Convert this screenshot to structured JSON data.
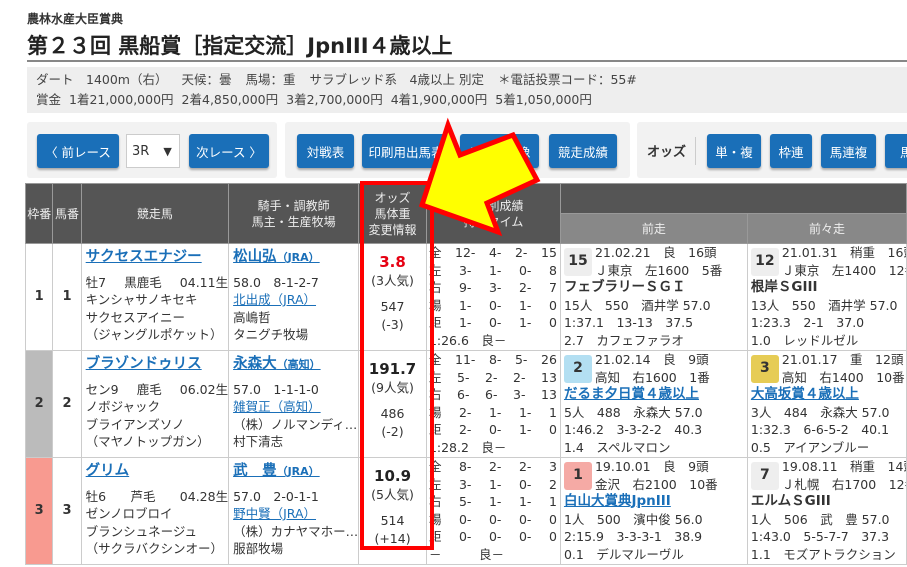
{
  "race": {
    "subtitle": "農林水産大臣賞典",
    "title": "第２３回 黒船賞［指定交流］JpnIII４歳以上",
    "info1": [
      "ダート　1400m（右）",
      "天候：曇",
      "馬場：重",
      "サラブレッド系　4歳以上 別定",
      "＊電話投票コード：55#"
    ],
    "info2": [
      "賞金",
      "1着21,000,000円",
      "2着4,850,000円",
      "3着2,700,000円",
      "4着1,900,000円",
      "5着1,050,000円"
    ]
  },
  "nav": {
    "prev": "〈 前レース",
    "race_select": "3R",
    "next": "次レース 〉",
    "buttons": [
      "対戦表",
      "印刷用出馬表",
      "レース映像",
      "競走成績"
    ],
    "odds_label": "オッズ",
    "odds_buttons": [
      "単・複",
      "枠連",
      "馬連複",
      "馬単"
    ]
  },
  "table": {
    "headers": {
      "waku": "枠番",
      "uma": "馬番",
      "horse": "競走馬",
      "jockey1": "騎手・調教師",
      "jockey2": "馬主・生産牧場",
      "odds1": "オッズ",
      "odds2": "馬体重",
      "odds3": "変更情報",
      "rec1": "条件別成績",
      "rec2": "持ちタイム",
      "prev1": "前走",
      "prev2": "前々走"
    },
    "rows": [
      {
        "waku": "1",
        "uma": "1",
        "waku_color": "#ffffff",
        "horse": "サクセスエナジー",
        "sex_age": "牡7",
        "color": "黒鹿毛",
        "birth": "04.11生",
        "sire": "キンシャサノキセキ",
        "dam": "サクセスアイニー",
        "damsire": "（ジャングルポケット）",
        "jockey": "松山弘",
        "jockey_aff": "（JRA）",
        "weight_rec": "58.0　8-1-2-7",
        "trainer": "北出成（JRA）",
        "owner": "高嶋哲",
        "breeder": "タニグチ牧場",
        "odds": "3.8",
        "odds_color": "#e60012",
        "pop": "(3人気)",
        "bw": "547",
        "bwd": "(-3)",
        "rec": [
          [
            "全",
            "12-",
            "4-",
            "2-",
            "15"
          ],
          [
            "左",
            "3-",
            "1-",
            "0-",
            "8"
          ],
          [
            "右",
            "9-",
            "3-",
            "2-",
            "7"
          ],
          [
            "場",
            "1-",
            "0-",
            "1-",
            "0"
          ],
          [
            "距",
            "1-",
            "0-",
            "1-",
            "0"
          ]
        ],
        "best": "1:26.6　良－",
        "p1": {
          "no": "15",
          "bg": "#eeeeee",
          "l1": "21.02.21　良　16頭",
          "l2": "Ｊ東京　左1600　5番",
          "race": "フェブラリーＳＧＩ",
          "link": false,
          "l3": "15人　550　酒井学 57.0",
          "l4": "1:37.1　13-13　37.5",
          "l5": "2.7　カフェファラオ"
        },
        "p2": {
          "no": "12",
          "bg": "#eeeeee",
          "l1": "21.01.31　稍重　16頭",
          "l2": "Ｊ東京　左1400　12番",
          "race": "根岸ＳGIII",
          "link": false,
          "l3": "13人　550　酒井学 57.0",
          "l4": "1:23.3　2-1　37.0",
          "l5": "1.0　レッドルゼル"
        }
      },
      {
        "waku": "2",
        "uma": "2",
        "waku_color": "#bbbbbb",
        "horse": "ブラゾンドゥリス",
        "sex_age": "セン9",
        "color": "鹿毛",
        "birth": "06.02生",
        "sire": "ノボジャック",
        "dam": "ブライアンズソノ",
        "damsire": "（マヤノトップガン）",
        "jockey": "永森大",
        "jockey_aff": "（高知）",
        "weight_rec": "57.0　1-1-1-0",
        "trainer": "雑賀正（高知）",
        "owner": "（株）ノルマンディ…",
        "breeder": "村下清志",
        "odds": "191.7",
        "odds_color": "#222222",
        "pop": "(9人気)",
        "bw": "486",
        "bwd": "(-2)",
        "rec": [
          [
            "全",
            "11-",
            "8-",
            "5-",
            "26"
          ],
          [
            "左",
            "5-",
            "2-",
            "2-",
            "13"
          ],
          [
            "右",
            "6-",
            "6-",
            "3-",
            "13"
          ],
          [
            "場",
            "2-",
            "1-",
            "1-",
            "1"
          ],
          [
            "距",
            "2-",
            "0-",
            "1-",
            "0"
          ]
        ],
        "best": "1:28.2　良－",
        "p1": {
          "no": "2",
          "bg": "#b3dff2",
          "l1": "21.02.14　良　9頭",
          "l2": "高知　右1600　1番",
          "race": "だるま夕日賞４歳以上",
          "link": true,
          "l3": "5人　488　永森大 57.0",
          "l4": "1:46.2　3-3-2-2　40.3",
          "l5": "1.4　スペルマロン"
        },
        "p2": {
          "no": "3",
          "bg": "#e6cc55",
          "l1": "21.01.17　重　12頭",
          "l2": "高知　右1400　10番",
          "race": "大高坂賞４歳以上",
          "link": true,
          "l3": "3人　484　永森大 57.0",
          "l4": "1:32.3　6-6-5-2　40.1",
          "l5": "0.5　アイアンブルー"
        }
      },
      {
        "waku": "3",
        "uma": "3",
        "waku_color": "#f89a90",
        "horse": "グリム",
        "sex_age": "牡6",
        "color": "芦毛",
        "birth": "04.28生",
        "sire": "ゼンノロブロイ",
        "dam": "ブランシュネージュ",
        "damsire": "（サクラバクシンオー）",
        "jockey": "武　豊",
        "jockey_aff": "（JRA）",
        "weight_rec": "57.0　2-0-1-1",
        "trainer": "野中賢（JRA）",
        "owner": "（株）カナヤマホー…",
        "breeder": "服部牧場",
        "odds": "10.9",
        "odds_color": "#222222",
        "pop": "(5人気)",
        "bw": "514",
        "bwd": "(+14)",
        "rec": [
          [
            "全",
            "8-",
            "2-",
            "2-",
            "3"
          ],
          [
            "左",
            "3-",
            "1-",
            "0-",
            "2"
          ],
          [
            "右",
            "5-",
            "1-",
            "1-",
            "1"
          ],
          [
            "場",
            "0-",
            "0-",
            "0-",
            "0"
          ],
          [
            "距",
            "0-",
            "0-",
            "0-",
            "0"
          ]
        ],
        "best": "－　　　良－",
        "p1": {
          "no": "1",
          "bg": "#f5aaa5",
          "l1": "19.10.01　良　9頭",
          "l2": "金沢　右2100　10番",
          "race": "白山大賞典JpnIII",
          "link": true,
          "l3": "1人　500　濱中俊 56.0",
          "l4": "2:15.9　3-3-3-1　38.9",
          "l5": "0.1　デルマルーヴル"
        },
        "p2": {
          "no": "7",
          "bg": "#eeeeee",
          "l1": "19.08.11　稍重　14頭",
          "l2": "Ｊ札幌　右1700　12番",
          "race": "エルムＳGIII",
          "link": false,
          "l3": "1人　506　武　豊 57.0",
          "l4": "1:43.0　5-5-7-7　37.3",
          "l5": "1.1　モズアトラクション"
        }
      }
    ]
  },
  "overlay": {
    "arrow_fill": "#ffff00",
    "arrow_stroke": "#ff0000",
    "box_color": "#ff0000"
  }
}
